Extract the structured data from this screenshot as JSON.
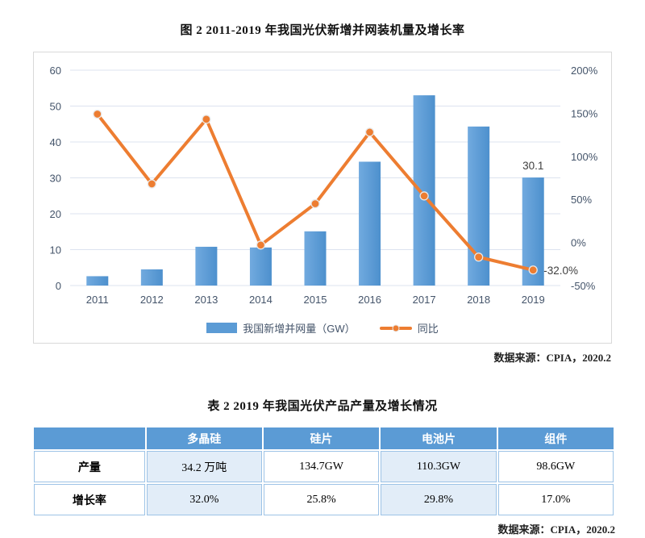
{
  "chart": {
    "title": "图 2 2011-2019 年我国光伏新增并网装机量及增长率",
    "source": "数据来源：CPIA，2020.2"
  },
  "chart_data": {
    "type": "bar+line",
    "categories": [
      "2011",
      "2012",
      "2013",
      "2014",
      "2015",
      "2016",
      "2017",
      "2018",
      "2019"
    ],
    "series": [
      {
        "name": "我国新增并网量（GW）",
        "type": "bar",
        "axis": "left",
        "values": [
          2.6,
          4.5,
          10.8,
          10.6,
          15.1,
          34.5,
          53.0,
          44.3,
          30.1
        ]
      },
      {
        "name": "同比",
        "type": "line",
        "axis": "right",
        "values": [
          149,
          68,
          143,
          -3,
          45,
          128,
          54,
          -17,
          -32
        ]
      }
    ],
    "left_axis": {
      "min": 0,
      "max": 60,
      "tick_values": [
        0,
        10,
        20,
        30,
        40,
        50,
        60
      ],
      "tick_labels": [
        "0",
        "10",
        "20",
        "30",
        "40",
        "50",
        "60"
      ]
    },
    "right_axis": {
      "min": -50,
      "max": 200,
      "tick_values": [
        -50,
        0,
        50,
        100,
        150,
        200
      ],
      "tick_labels": [
        "-50%",
        "0%",
        "50%",
        "100%",
        "150%",
        "200%"
      ]
    },
    "annotations": [
      {
        "series": "bar",
        "index": 8,
        "text": "30.1"
      },
      {
        "series": "line",
        "index": 8,
        "text": "-32.0%"
      }
    ],
    "legend_position": "bottom",
    "grid": true,
    "colors": {
      "bar": "#5B9BD5",
      "bar_light": "#71AADF",
      "bar_dark": "#4D90CD",
      "line": "#ED7D31",
      "grid": "#DCE3EF",
      "axis_text": "#44546A",
      "label_text": "#404040",
      "frame": "#D9D9D9"
    }
  },
  "table": {
    "title": "表 2 2019 年我国光伏产品产量及增长情况",
    "source": "数据来源：CPIA，2020.2",
    "columns": [
      "",
      "多晶硅",
      "硅片",
      "电池片",
      "组件"
    ],
    "rows": [
      {
        "label": "产量",
        "values": [
          "34.2 万吨",
          "134.7GW",
          "110.3GW",
          "98.6GW"
        ]
      },
      {
        "label": "增长率",
        "values": [
          "32.0%",
          "25.8%",
          "29.8%",
          "17.0%"
        ]
      }
    ]
  }
}
